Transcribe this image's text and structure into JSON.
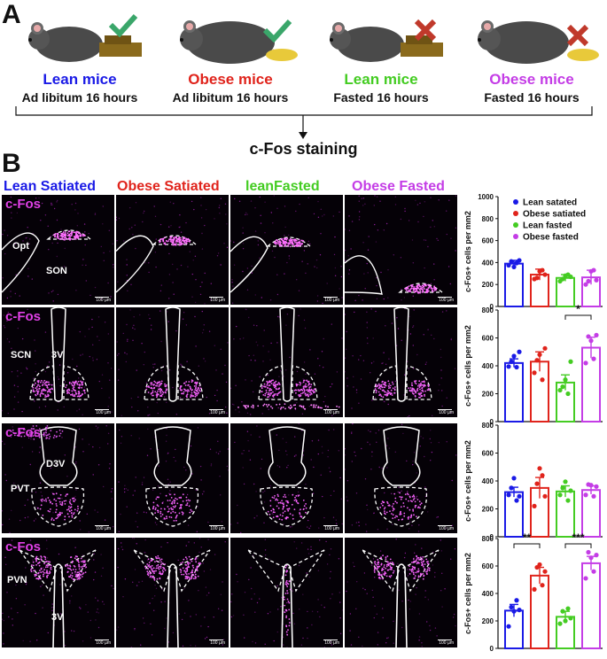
{
  "panel_a": {
    "letter": "A",
    "groups": [
      {
        "title": "Lean mice",
        "title_color": "#1a1ae6",
        "condition": "Ad libitum 16 hours",
        "status": "check-icon"
      },
      {
        "title": "Obese mice",
        "title_color": "#e0241c",
        "condition": "Ad libitum 16 hours",
        "status": "check-icon"
      },
      {
        "title": "Lean mice",
        "title_color": "#44cc22",
        "condition": "Fasted 16 hours",
        "status": "cross-icon"
      },
      {
        "title": "Obese mice",
        "title_color": "#c43de6",
        "condition": "Fasted 16 hours",
        "status": "cross-icon"
      }
    ],
    "outcome": "c-Fos staining"
  },
  "panel_b": {
    "letter": "B",
    "columns": [
      {
        "label": "Lean Satiated",
        "color": "#1a1ae6"
      },
      {
        "label": "Obese Satiated",
        "color": "#e0241c"
      },
      {
        "label": "leanFasted",
        "color": "#44cc22"
      },
      {
        "label": "Obese Fasted",
        "color": "#c43de6"
      }
    ],
    "stain_label": "c-Fos",
    "scale_label": "100 µm",
    "region_labels": {
      "son_row": [
        "Opt",
        "SON"
      ],
      "scn_row": [
        "SCN",
        "3V"
      ],
      "pvt_row": [
        "D3V",
        "PVT"
      ],
      "pvn_row": [
        "PVN",
        "3V"
      ]
    }
  },
  "chart_data": [
    {
      "type": "bar",
      "region": "SON",
      "ylabel": "c-Fos+ cells per mm2",
      "ylim": [
        0,
        1000
      ],
      "yticks": [
        0,
        200,
        400,
        600,
        800,
        1000
      ],
      "legend": [
        "Lean satated",
        "Obese satiated",
        "Lean fasted",
        "Obese fasted"
      ],
      "legend_position": "top-right",
      "colors": [
        "#1a1ae6",
        "#e0241c",
        "#44cc22",
        "#c43de6"
      ],
      "values": [
        390,
        290,
        260,
        265
      ],
      "errors": [
        30,
        50,
        30,
        65
      ],
      "points": [
        [
          375,
          410,
          360,
          395,
          420
        ],
        [
          250,
          260,
          320,
          330,
          290
        ],
        [
          230,
          250,
          280,
          290,
          270
        ],
        [
          200,
          230,
          320,
          330,
          240
        ]
      ],
      "significance": []
    },
    {
      "type": "bar",
      "region": "SCN",
      "ylabel": "c-Fos+ cells per mm2",
      "ylim": [
        0,
        800
      ],
      "yticks": [
        0,
        200,
        400,
        600,
        800
      ],
      "colors": [
        "#1a1ae6",
        "#e0241c",
        "#44cc22",
        "#c43de6"
      ],
      "values": [
        420,
        430,
        280,
        530
      ],
      "errors": [
        30,
        70,
        55,
        75
      ],
      "points": [
        [
          395,
          430,
          470,
          390,
          500
        ],
        [
          350,
          440,
          480,
          300,
          525
        ],
        [
          225,
          250,
          300,
          200,
          430
        ],
        [
          420,
          610,
          580,
          450,
          620
        ]
      ],
      "significance": [
        {
          "pair": [
            2,
            3
          ],
          "label": "*"
        }
      ]
    },
    {
      "type": "bar",
      "region": "PVT",
      "ylabel": "c-Fos+ cells per mm2",
      "ylim": [
        0,
        800
      ],
      "yticks": [
        0,
        200,
        400,
        600,
        800
      ],
      "colors": [
        "#1a1ae6",
        "#e0241c",
        "#44cc22",
        "#c43de6"
      ],
      "values": [
        320,
        350,
        325,
        335
      ],
      "errors": [
        35,
        75,
        40,
        30
      ],
      "points": [
        [
          300,
          350,
          420,
          260,
          290
        ],
        [
          220,
          380,
          490,
          440,
          290
        ],
        [
          300,
          350,
          395,
          260,
          330
        ],
        [
          300,
          375,
          370,
          290,
          360
        ]
      ],
      "significance": []
    },
    {
      "type": "bar",
      "region": "PVN",
      "ylabel": "c-Fos+ cells per mm2",
      "ylim": [
        0,
        800
      ],
      "yticks": [
        0,
        200,
        400,
        600,
        800
      ],
      "colors": [
        "#1a1ae6",
        "#e0241c",
        "#44cc22",
        "#c43de6"
      ],
      "values": [
        275,
        530,
        230,
        620
      ],
      "errors": [
        45,
        60,
        40,
        50
      ],
      "points": [
        [
          160,
          300,
          270,
          350,
          280
        ],
        [
          430,
          590,
          610,
          460,
          560
        ],
        [
          180,
          270,
          200,
          290,
          220
        ],
        [
          510,
          700,
          660,
          560,
          680
        ]
      ],
      "significance": [
        {
          "pair": [
            0,
            1
          ],
          "label": "**"
        },
        {
          "pair": [
            2,
            3
          ],
          "label": "***"
        }
      ]
    }
  ]
}
